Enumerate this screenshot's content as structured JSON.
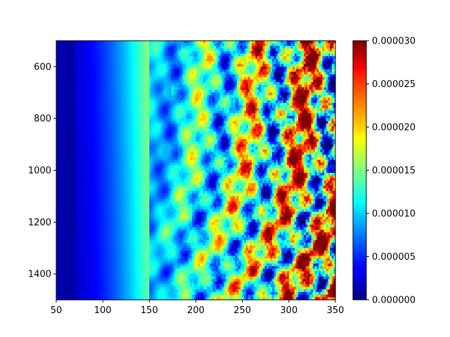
{
  "chart_data": {
    "type": "heatmap",
    "title": "",
    "xlabel": "",
    "ylabel": "",
    "xlim": [
      50,
      350
    ],
    "ylim": [
      500,
      1500
    ],
    "y_inverted": true,
    "xticks": [
      50,
      100,
      150,
      200,
      250,
      300,
      350
    ],
    "xtick_labels": [
      "50",
      "100",
      "150",
      "200",
      "250",
      "300",
      "350"
    ],
    "yticks": [
      600,
      800,
      1000,
      1200,
      1400
    ],
    "ytick_labels": [
      "600",
      "800",
      "1000",
      "1200",
      "1400"
    ],
    "colormap": "jet",
    "colorbar": {
      "min": 0.0,
      "max": 3e-05,
      "ticks": [
        0.0,
        5e-06,
        1e-05,
        1.5e-05,
        2e-05,
        2.5e-05,
        3e-05
      ],
      "tick_labels": [
        "0.000000",
        "0.000005",
        "0.000010",
        "0.000015",
        "0.000020",
        "0.000025",
        "0.000030"
      ],
      "placement": "right"
    },
    "description_of_field": {
      "smooth_low_region_x_max": 150,
      "oscillatory_region_x_min": 150,
      "saturated_region_x_min": 220
    },
    "grid": false
  }
}
